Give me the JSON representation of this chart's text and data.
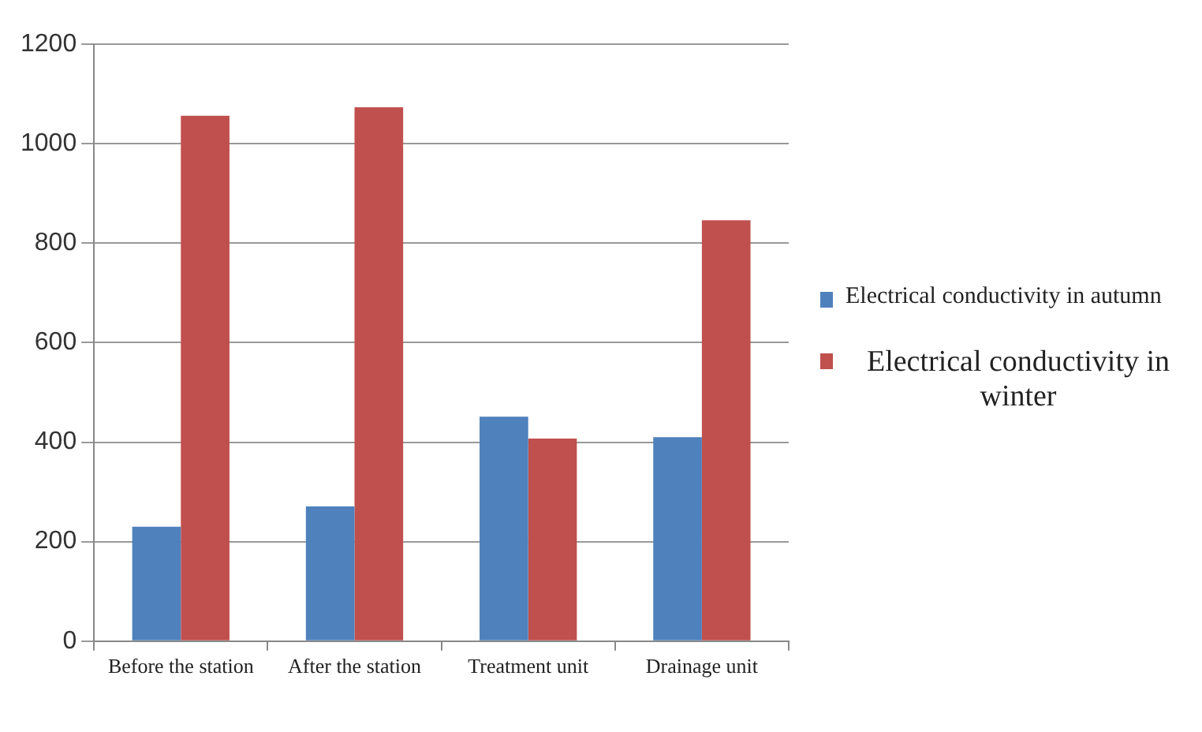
{
  "chart_data": {
    "type": "bar",
    "categories": [
      "Before the station",
      "After the station",
      "Treatment unit",
      "Drainage unit"
    ],
    "series": [
      {
        "name": "Electrical conductivity in autumn",
        "color": "#4f81bd",
        "values": [
          230,
          271,
          451,
          410
        ]
      },
      {
        "name": "Electrical conductivity in winter",
        "color": "#c0504d",
        "values": [
          1056,
          1073,
          407,
          846
        ]
      }
    ],
    "ylim": [
      0,
      1200
    ],
    "yticks": [
      0,
      200,
      400,
      600,
      800,
      1000,
      1200
    ],
    "grid": "y",
    "legend": "right"
  }
}
